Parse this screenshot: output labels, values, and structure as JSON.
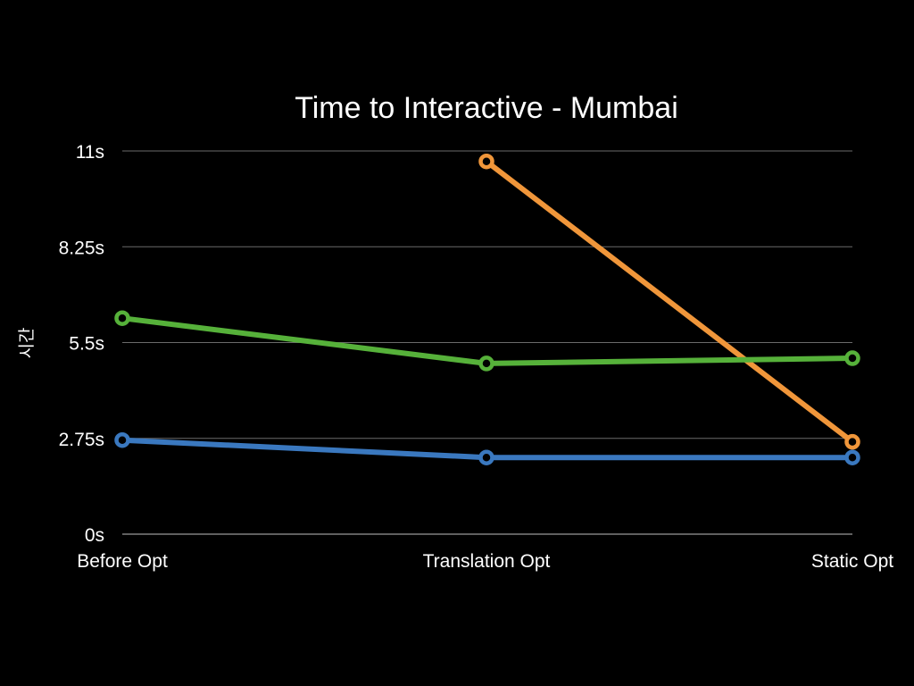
{
  "chart_data": {
    "type": "line",
    "title": "Time to Interactive - Mumbai",
    "xlabel": "",
    "ylabel": "시간",
    "categories": [
      "Before Opt",
      "Translation Opt",
      "Static Opt"
    ],
    "y_ticks": [
      0,
      2.75,
      5.5,
      8.25,
      11
    ],
    "y_tick_labels": [
      "0s",
      "2.75s",
      "5.5s",
      "8.25s",
      "11s"
    ],
    "ylim": [
      0,
      11
    ],
    "grid": true,
    "legend": "none",
    "series": [
      {
        "color": "#f0963a",
        "values": [
          null,
          10.7,
          2.65
        ]
      },
      {
        "color": "#56b13a",
        "values": [
          6.2,
          4.9,
          5.05
        ]
      },
      {
        "color": "#3a78bf",
        "values": [
          2.7,
          2.2,
          2.2
        ]
      }
    ]
  }
}
